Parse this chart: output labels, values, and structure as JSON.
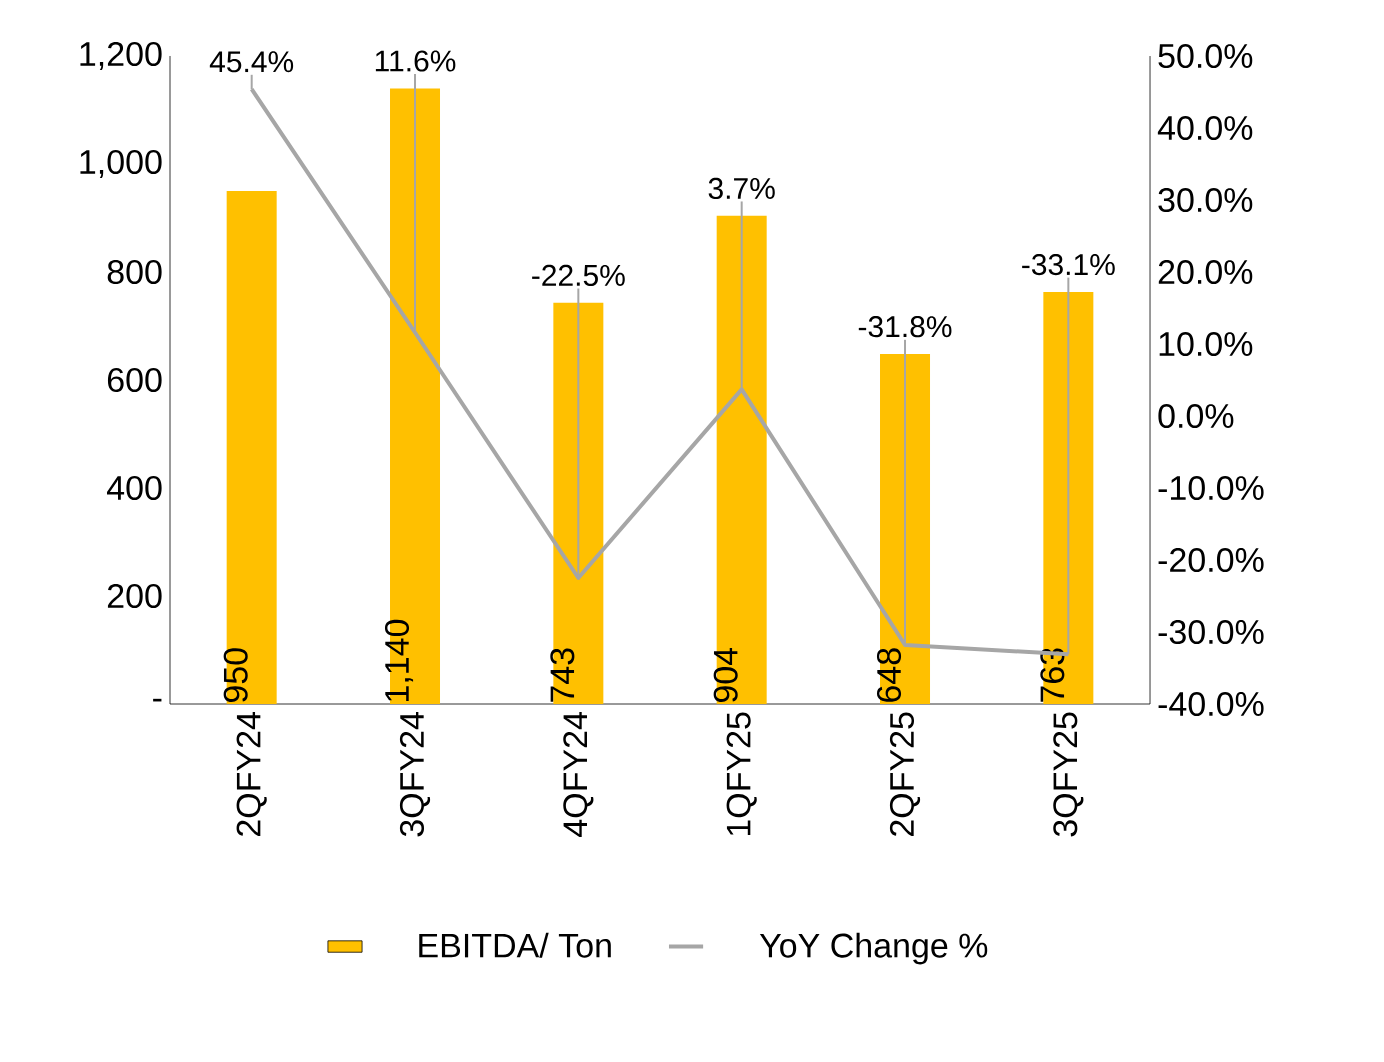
{
  "chart_data": {
    "type": "bar",
    "categories": [
      "2QFY24",
      "3QFY24",
      "4QFY24",
      "1QFY25",
      "2QFY25",
      "3QFY25"
    ],
    "series": [
      {
        "name": "EBITDA/ Ton",
        "color": "#ffc000",
        "values": [
          950,
          1140,
          743,
          904,
          648,
          763
        ],
        "value_labels": [
          "950",
          "1,140",
          "743",
          "904",
          "648",
          "763"
        ]
      },
      {
        "name": "YoY Change %",
        "type": "line",
        "axis": "y2",
        "color": "#a6a6a6",
        "values": [
          45.4,
          11.6,
          -22.5,
          3.7,
          -31.8,
          -33.1
        ],
        "value_labels": [
          "45.4%",
          "11.6%",
          "-22.5%",
          "3.7%",
          "-31.8%",
          "-33.1%"
        ]
      }
    ],
    "ylim": [
      0,
      1200
    ],
    "yticks": [
      {
        "value": 0,
        "label": "-"
      },
      200,
      400,
      600,
      800,
      {
        "value": 1000,
        "label": "1,000"
      },
      {
        "value": 1200,
        "label": "1,200"
      }
    ],
    "y2lim": [
      -40,
      50
    ],
    "y2ticks": [
      {
        "value": -40,
        "label": "-40.0%"
      },
      {
        "value": -30,
        "label": "-30.0%"
      },
      {
        "value": -20,
        "label": "-20.0%"
      },
      {
        "value": -10,
        "label": "-10.0%"
      },
      {
        "value": 0,
        "label": "0.0%"
      },
      {
        "value": 10,
        "label": "10.0%"
      },
      {
        "value": 20,
        "label": "20.0%"
      },
      {
        "value": 30,
        "label": "30.0%"
      },
      {
        "value": 40,
        "label": "40.0%"
      },
      {
        "value": 50,
        "label": "50.0%"
      }
    ],
    "legend": "bottom",
    "grid": false,
    "marker": "none"
  }
}
